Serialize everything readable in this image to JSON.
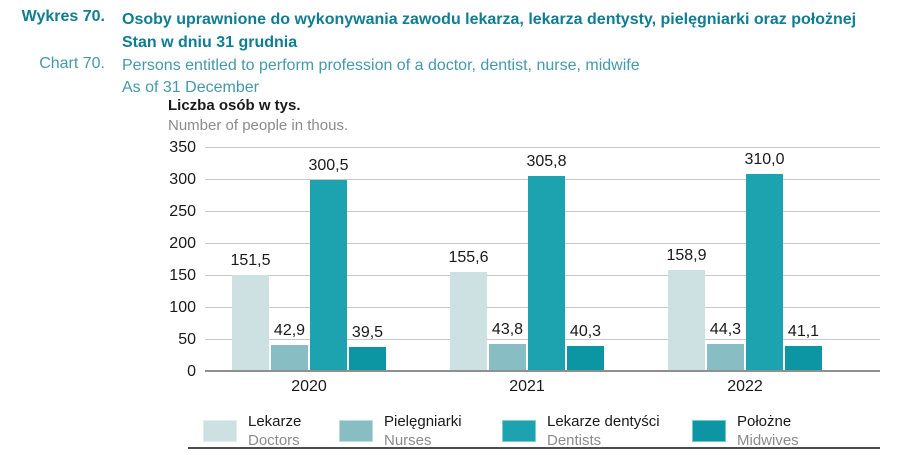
{
  "header": {
    "chart_no_pl": "Wykres 70.",
    "chart_no_en": "Chart 70.",
    "title_pl": [
      "Osoby uprawnione do wykonywania zawodu lekarza, lekarza dentysty, pielęgniarki oraz położnej",
      "Stan w dniu 31 grudnia"
    ],
    "title_en": [
      "Persons entitled to perform profession of a doctor, dentist, nurse, midwife",
      "As of 31 December"
    ]
  },
  "y_axis": {
    "unit_pl": "Liczba osób w tys.",
    "unit_en": "Number of people in thous.",
    "ticks": [
      0,
      50,
      100,
      150,
      200,
      250,
      300,
      350
    ]
  },
  "chart_data": {
    "type": "bar",
    "title": "Osoby uprawnione do wykonywania zawodu lekarza, lekarza dentysty, pielęgniarki oraz położnej. Stan w dniu 31 grudnia / Persons entitled to perform profession of a doctor, dentist, nurse, midwife. As of 31 December",
    "ylabel": "Liczba osób w tys. / Number of people in thous.",
    "categories": [
      "2020",
      "2021",
      "2022"
    ],
    "series": [
      {
        "name_pl": "Lekarze",
        "name_en": "Doctors",
        "color": "#cde1e3",
        "values": [
          151.5,
          155.6,
          158.9
        ]
      },
      {
        "name_pl": "Pielęgniarki",
        "name_en": "Nurses",
        "color": "#88bdc4",
        "values": [
          42.9,
          43.8,
          44.3
        ]
      },
      {
        "name_pl": "Lekarze dentyści",
        "name_en": "Dentists",
        "color": "#1ca3af",
        "values": [
          300.5,
          305.8,
          310.0
        ]
      },
      {
        "name_pl": "Położne",
        "name_en": "Midwives",
        "color": "#0c96a4",
        "values": [
          39.5,
          40.3,
          41.1
        ]
      }
    ],
    "ylim": [
      0,
      350
    ],
    "ytick_step": 50,
    "grid": true,
    "legend_position": "bottom",
    "value_labels": true,
    "decimal_separator": ","
  },
  "colors": {
    "title_teal": "#0f7d93",
    "subtitle_teal": "#4599ab",
    "gridline": "#c9c9c9",
    "baseline": "#8f8f8f",
    "text_dark": "#1a1a1a",
    "text_gray": "#8b8b8b",
    "footer_rule": "#4c4c4c"
  }
}
